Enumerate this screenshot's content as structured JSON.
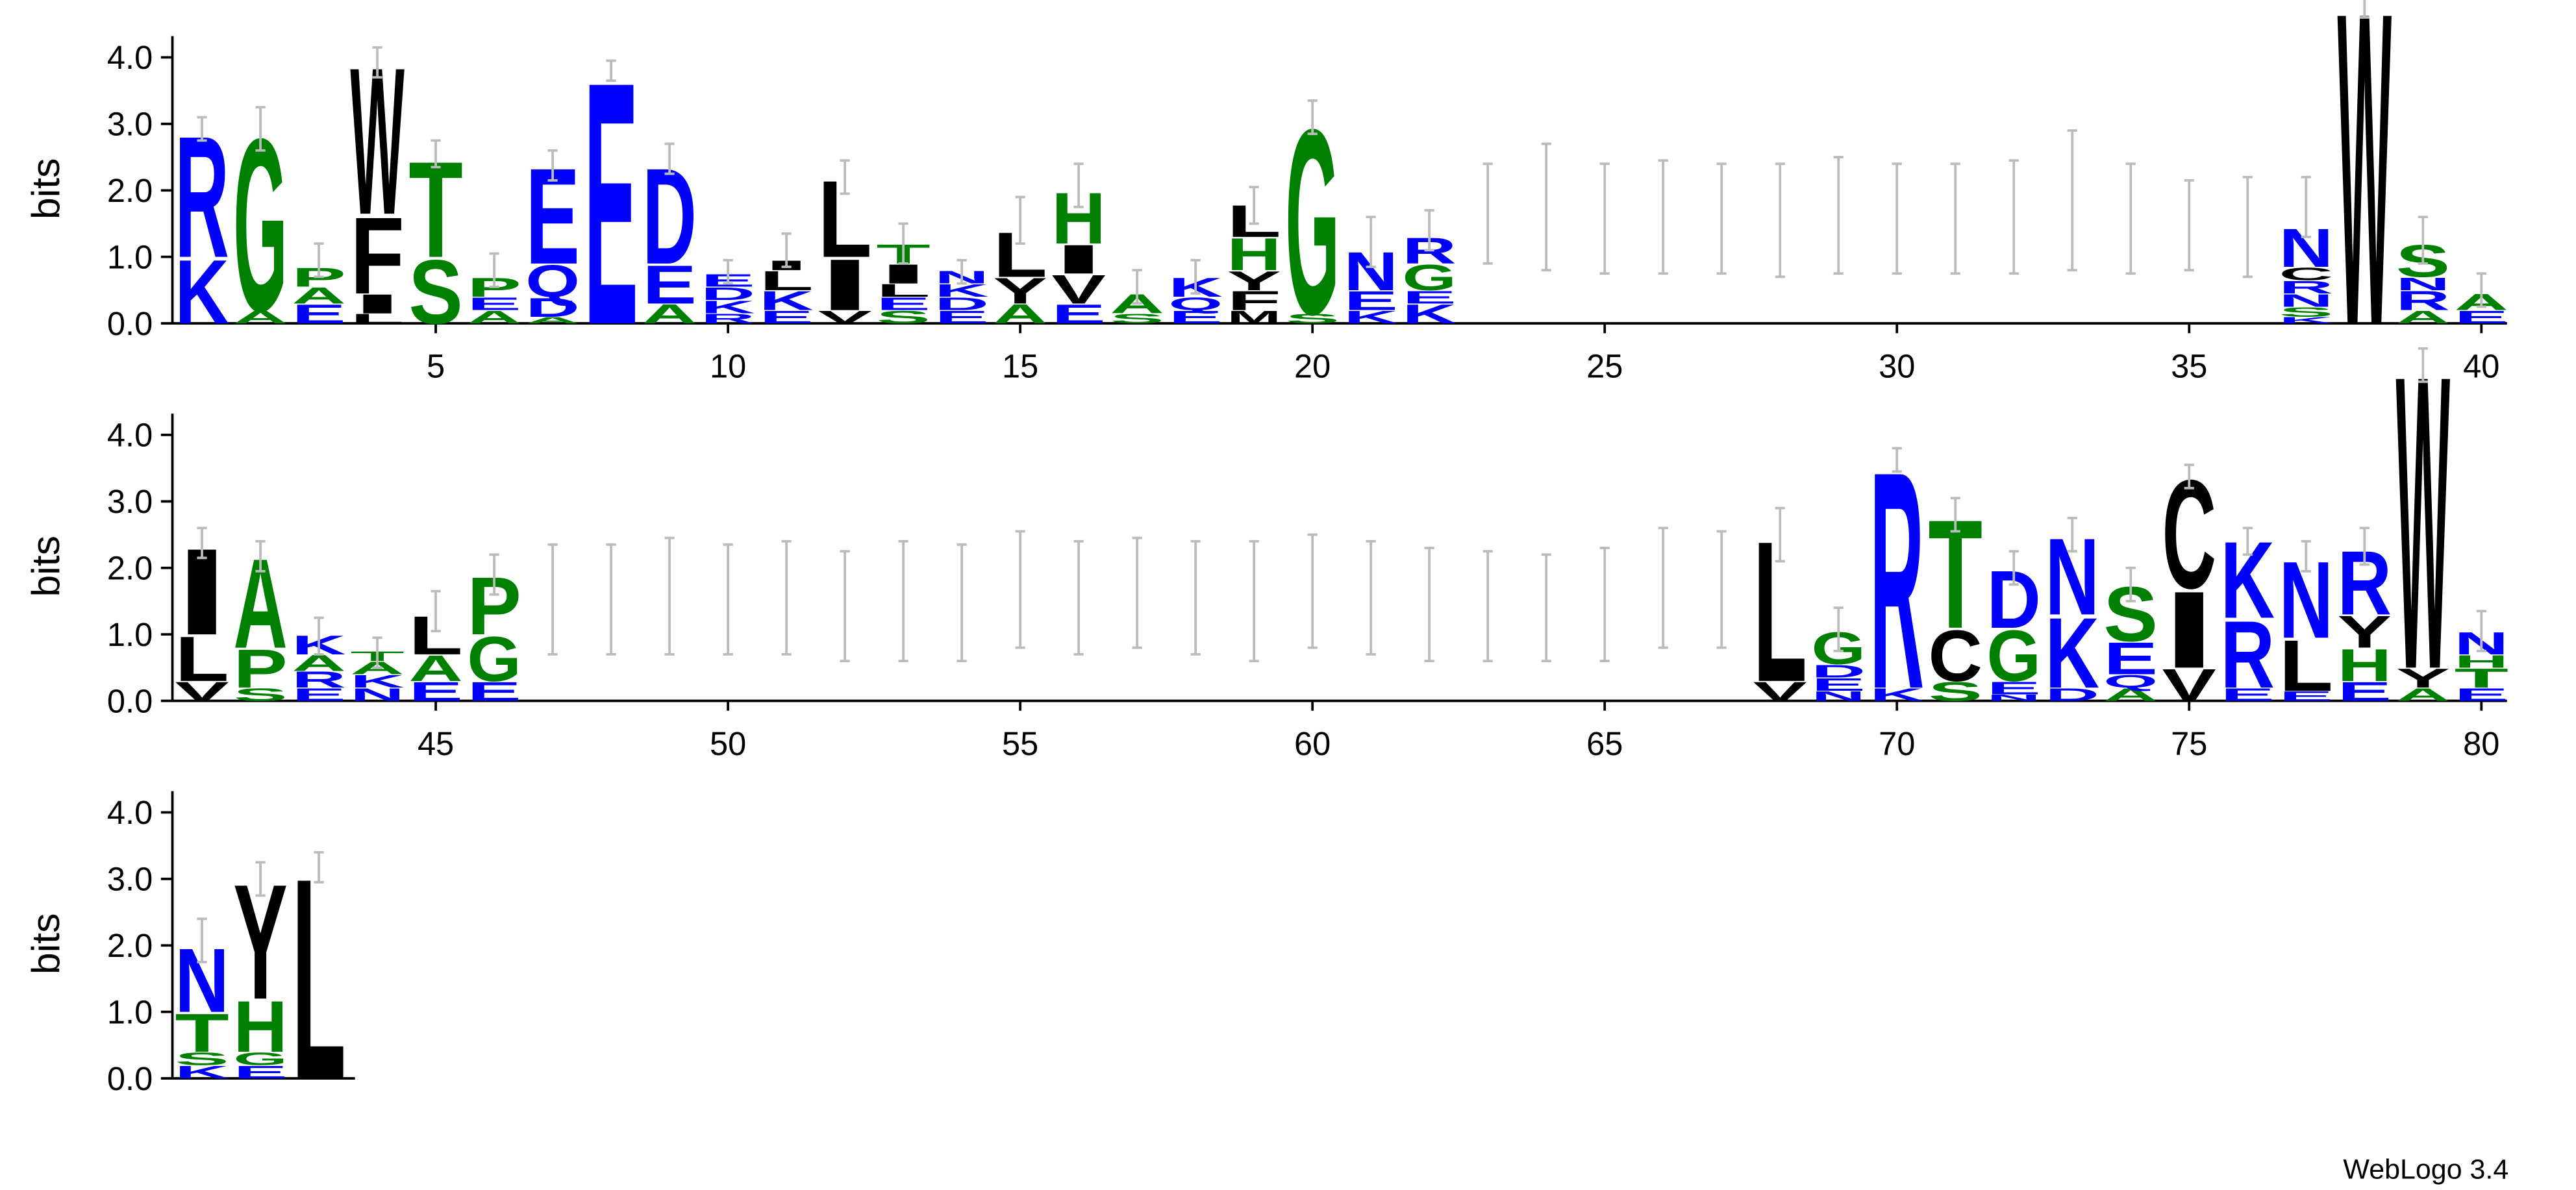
{
  "chart_data": {
    "type": "logo",
    "ylabel": "bits",
    "footer": "WebLogo 3.4",
    "ylim": [
      0,
      4.32
    ],
    "yticks": [
      {
        "value": 0,
        "label": "0.0"
      },
      {
        "value": 1,
        "label": "1.0"
      },
      {
        "value": 2,
        "label": "2.0"
      },
      {
        "value": 3,
        "label": "3.0"
      },
      {
        "value": 4,
        "label": "4.0"
      }
    ],
    "xticks": [
      5,
      10,
      15,
      20,
      25,
      30,
      35,
      40,
      45,
      50,
      55,
      60,
      65,
      70,
      75,
      80
    ],
    "colors": {
      "G": "#008000",
      "S": "#008000",
      "T": "#008000",
      "A": "#008000",
      "P": "#008000",
      "H": "#008000",
      "K": "#0000ff",
      "R": "#0000ff",
      "D": "#0000ff",
      "E": "#0000ff",
      "N": "#0000ff",
      "Q": "#0000ff",
      "C": "#000000",
      "Y": "#000000",
      "L": "#000000",
      "I": "#000000",
      "V": "#000000",
      "F": "#000000",
      "W": "#000000",
      "M": "#000000"
    },
    "positions": [
      {
        "stack": [
          [
            "K",
            1.0
          ],
          [
            "R",
            1.9
          ]
        ],
        "error": [
          2.75,
          3.1
        ]
      },
      {
        "stack": [
          [
            "A",
            0.2
          ],
          [
            "G",
            2.7
          ]
        ],
        "error": [
          2.6,
          3.25
        ]
      },
      {
        "stack": [
          [
            "E",
            0.3
          ],
          [
            "A",
            0.25
          ],
          [
            "P",
            0.3
          ]
        ],
        "error": [
          0.7,
          1.2
        ]
      },
      {
        "stack": [
          [
            "L",
            0.15
          ],
          [
            "I",
            0.3
          ],
          [
            "F",
            1.2
          ],
          [
            "W",
            2.3
          ]
        ],
        "error": [
          3.7,
          4.15
        ]
      },
      {
        "stack": [
          [
            "S",
            1.0
          ],
          [
            "T",
            1.5
          ]
        ],
        "error": [
          2.35,
          2.75
        ]
      },
      {
        "stack": [
          [
            "A",
            0.2
          ],
          [
            "E",
            0.2
          ],
          [
            "P",
            0.3
          ]
        ],
        "error": [
          0.55,
          1.05
        ]
      },
      {
        "stack": [
          [
            "A",
            0.1
          ],
          [
            "D",
            0.3
          ],
          [
            "Q",
            0.5
          ],
          [
            "E",
            1.5
          ]
        ],
        "error": [
          2.15,
          2.6
        ]
      },
      {
        "stack": [
          [
            "E",
            3.8
          ]
        ],
        "error": [
          3.65,
          3.95
        ]
      },
      {
        "stack": [
          [
            "A",
            0.3
          ],
          [
            "E",
            0.6
          ],
          [
            "D",
            1.5
          ]
        ],
        "error": [
          2.25,
          2.7
        ]
      },
      {
        "stack": [
          [
            "R",
            0.15
          ],
          [
            "K",
            0.2
          ],
          [
            "D",
            0.2
          ],
          [
            "E",
            0.2
          ]
        ],
        "error": [
          0.6,
          0.95
        ]
      },
      {
        "stack": [
          [
            "E",
            0.2
          ],
          [
            "K",
            0.3
          ],
          [
            "L",
            0.3
          ],
          [
            "I",
            0.15
          ]
        ],
        "error": [
          0.85,
          1.35
        ]
      },
      {
        "stack": [
          [
            "V",
            0.2
          ],
          [
            "I",
            0.8
          ],
          [
            "L",
            1.2
          ]
        ],
        "error": [
          1.95,
          2.45
        ]
      },
      {
        "stack": [
          [
            "S",
            0.2
          ],
          [
            "E",
            0.2
          ],
          [
            "L",
            0.2
          ],
          [
            "I",
            0.3
          ],
          [
            "T",
            0.3
          ]
        ],
        "error": [
          0.9,
          1.5
        ]
      },
      {
        "stack": [
          [
            "E",
            0.2
          ],
          [
            "D",
            0.2
          ],
          [
            "K",
            0.2
          ],
          [
            "N",
            0.2
          ]
        ],
        "error": [
          0.6,
          0.95
        ]
      },
      {
        "stack": [
          [
            "A",
            0.3
          ],
          [
            "Y",
            0.4
          ],
          [
            "L",
            0.7
          ]
        ],
        "error": [
          1.2,
          1.9
        ]
      },
      {
        "stack": [
          [
            "E",
            0.3
          ],
          [
            "V",
            0.45
          ],
          [
            "I",
            0.45
          ],
          [
            "H",
            0.8
          ]
        ],
        "error": [
          1.75,
          2.4
        ]
      },
      {
        "stack": [
          [
            "S",
            0.15
          ],
          [
            "A",
            0.3
          ]
        ],
        "error": [
          0.3,
          0.8
        ]
      },
      {
        "stack": [
          [
            "E",
            0.2
          ],
          [
            "Q",
            0.2
          ],
          [
            "K",
            0.3
          ]
        ],
        "error": [
          0.45,
          0.95
        ]
      },
      {
        "stack": [
          [
            "M",
            0.2
          ],
          [
            "F",
            0.3
          ],
          [
            "Y",
            0.3
          ],
          [
            "H",
            0.5
          ],
          [
            "L",
            0.5
          ]
        ],
        "error": [
          1.5,
          2.05
        ]
      },
      {
        "stack": [
          [
            "S",
            0.15
          ],
          [
            "G",
            2.9
          ]
        ],
        "error": [
          2.85,
          3.35
        ]
      },
      {
        "stack": [
          [
            "K",
            0.2
          ],
          [
            "E",
            0.3
          ],
          [
            "N",
            0.6
          ]
        ],
        "error": [
          0.85,
          1.6
        ]
      },
      {
        "stack": [
          [
            "K",
            0.3
          ],
          [
            "E",
            0.2
          ],
          [
            "G",
            0.4
          ],
          [
            "R",
            0.4
          ]
        ],
        "error": [
          1.1,
          1.7
        ]
      },
      {
        "stack": [],
        "error": [
          0.9,
          2.4
        ]
      },
      {
        "stack": [],
        "error": [
          0.8,
          2.7
        ]
      },
      {
        "stack": [],
        "error": [
          0.75,
          2.4
        ]
      },
      {
        "stack": [],
        "error": [
          0.75,
          2.45
        ]
      },
      {
        "stack": [],
        "error": [
          0.75,
          2.4
        ]
      },
      {
        "stack": [],
        "error": [
          0.7,
          2.4
        ]
      },
      {
        "stack": [],
        "error": [
          0.75,
          2.5
        ]
      },
      {
        "stack": [],
        "error": [
          0.75,
          2.4
        ]
      },
      {
        "stack": [],
        "error": [
          0.75,
          2.4
        ]
      },
      {
        "stack": [],
        "error": [
          0.75,
          2.45
        ]
      },
      {
        "stack": [],
        "error": [
          0.8,
          2.9
        ]
      },
      {
        "stack": [],
        "error": [
          0.75,
          2.4
        ]
      },
      {
        "stack": [],
        "error": [
          0.8,
          2.15
        ]
      },
      {
        "stack": [],
        "error": [
          0.7,
          2.2
        ]
      },
      {
        "stack": [
          [
            "K",
            0.1
          ],
          [
            "S",
            0.15
          ],
          [
            "N",
            0.2
          ],
          [
            "R",
            0.2
          ],
          [
            "C",
            0.2
          ],
          [
            "N",
            0.6
          ]
        ],
        "error": [
          1.3,
          2.2
        ]
      },
      {
        "stack": [
          [
            "W",
            4.9
          ]
        ],
        "error": [
          4.6,
          5.2
        ]
      },
      {
        "stack": [
          [
            "A",
            0.2
          ],
          [
            "R",
            0.3
          ],
          [
            "N",
            0.2
          ],
          [
            "S",
            0.5
          ]
        ],
        "error": [
          0.9,
          1.6
        ]
      },
      {
        "stack": [
          [
            "E",
            0.2
          ],
          [
            "A",
            0.25
          ]
        ],
        "error": [
          0.25,
          0.75
        ]
      },
      {
        "stack": [
          [
            "V",
            0.3
          ],
          [
            "L",
            0.7
          ],
          [
            "I",
            1.35
          ]
        ],
        "error": [
          2.15,
          2.6
        ]
      },
      {
        "stack": [
          [
            "S",
            0.2
          ],
          [
            "P",
            0.6
          ],
          [
            "A",
            1.4
          ]
        ],
        "error": [
          1.95,
          2.4
        ]
      },
      {
        "stack": [
          [
            "E",
            0.2
          ],
          [
            "R",
            0.25
          ],
          [
            "A",
            0.25
          ],
          [
            "K",
            0.3
          ]
        ],
        "error": [
          0.7,
          1.25
        ]
      },
      {
        "stack": [
          [
            "N",
            0.2
          ],
          [
            "K",
            0.2
          ],
          [
            "A",
            0.2
          ],
          [
            "T",
            0.15
          ]
        ],
        "error": [
          0.5,
          0.95
        ]
      },
      {
        "stack": [
          [
            "E",
            0.3
          ],
          [
            "A",
            0.4
          ],
          [
            "L",
            0.6
          ]
        ],
        "error": [
          1.05,
          1.65
        ]
      },
      {
        "stack": [
          [
            "E",
            0.3
          ],
          [
            "G",
            0.7
          ],
          [
            "P",
            0.9
          ]
        ],
        "error": [
          1.6,
          2.2
        ]
      },
      {
        "stack": [],
        "error": [
          0.7,
          2.35
        ]
      },
      {
        "stack": [],
        "error": [
          0.7,
          2.35
        ]
      },
      {
        "stack": [],
        "error": [
          0.7,
          2.45
        ]
      },
      {
        "stack": [],
        "error": [
          0.7,
          2.35
        ]
      },
      {
        "stack": [],
        "error": [
          0.7,
          2.4
        ]
      },
      {
        "stack": [],
        "error": [
          0.6,
          2.25
        ]
      },
      {
        "stack": [],
        "error": [
          0.6,
          2.4
        ]
      },
      {
        "stack": [],
        "error": [
          0.6,
          2.35
        ]
      },
      {
        "stack": [],
        "error": [
          0.8,
          2.55
        ]
      },
      {
        "stack": [],
        "error": [
          0.7,
          2.4
        ]
      },
      {
        "stack": [],
        "error": [
          0.8,
          2.45
        ]
      },
      {
        "stack": [],
        "error": [
          0.7,
          2.4
        ]
      },
      {
        "stack": [],
        "error": [
          0.6,
          2.4
        ]
      },
      {
        "stack": [],
        "error": [
          0.8,
          2.5
        ]
      },
      {
        "stack": [],
        "error": [
          0.7,
          2.4
        ]
      },
      {
        "stack": [],
        "error": [
          0.6,
          2.3
        ]
      },
      {
        "stack": [],
        "error": [
          0.6,
          2.25
        ]
      },
      {
        "stack": [],
        "error": [
          0.6,
          2.2
        ]
      },
      {
        "stack": [],
        "error": [
          0.6,
          2.3
        ]
      },
      {
        "stack": [],
        "error": [
          0.8,
          2.6
        ]
      },
      {
        "stack": [],
        "error": [
          0.8,
          2.55
        ]
      },
      {
        "stack": [
          [
            "V",
            0.3
          ],
          [
            "L",
            2.2
          ]
        ],
        "error": [
          2.1,
          2.9
        ]
      },
      {
        "stack": [
          [
            "N",
            0.15
          ],
          [
            "E",
            0.2
          ],
          [
            "D",
            0.2
          ],
          [
            "G",
            0.5
          ]
        ],
        "error": [
          0.75,
          1.4
        ]
      },
      {
        "stack": [
          [
            "K",
            0.2
          ],
          [
            "R",
            3.4
          ]
        ],
        "error": [
          3.45,
          3.8
        ]
      },
      {
        "stack": [
          [
            "S",
            0.3
          ],
          [
            "C",
            0.8
          ],
          [
            "T",
            1.7
          ]
        ],
        "error": [
          2.55,
          3.05
        ]
      },
      {
        "stack": [
          [
            "N",
            0.1
          ],
          [
            "E",
            0.2
          ],
          [
            "G",
            0.8
          ],
          [
            "D",
            0.9
          ]
        ],
        "error": [
          1.75,
          2.25
        ]
      },
      {
        "stack": [
          [
            "D",
            0.2
          ],
          [
            "K",
            1.1
          ],
          [
            "N",
            1.2
          ]
        ],
        "error": [
          2.25,
          2.75
        ]
      },
      {
        "stack": [
          [
            "A",
            0.2
          ],
          [
            "Q",
            0.2
          ],
          [
            "E",
            0.5
          ],
          [
            "S",
            0.85
          ]
        ],
        "error": [
          1.5,
          2.0
        ]
      },
      {
        "stack": [
          [
            "V",
            0.5
          ],
          [
            "I",
            1.2
          ],
          [
            "C",
            1.7
          ]
        ],
        "error": [
          3.2,
          3.55
        ]
      },
      {
        "stack": [
          [
            "E",
            0.2
          ],
          [
            "R",
            1.05
          ],
          [
            "K",
            1.2
          ]
        ],
        "error": [
          2.2,
          2.6
        ]
      },
      {
        "stack": [
          [
            "E",
            0.15
          ],
          [
            "L",
            0.8
          ],
          [
            "N",
            1.2
          ]
        ],
        "error": [
          1.95,
          2.4
        ]
      },
      {
        "stack": [
          [
            "E",
            0.3
          ],
          [
            "H",
            0.5
          ],
          [
            "Y",
            0.5
          ],
          [
            "R",
            1.0
          ]
        ],
        "error": [
          2.05,
          2.6
        ]
      },
      {
        "stack": [
          [
            "A",
            0.2
          ],
          [
            "Y",
            0.3
          ],
          [
            "W",
            4.6
          ]
        ],
        "error": [
          4.8,
          5.3
        ]
      },
      {
        "stack": [
          [
            "E",
            0.2
          ],
          [
            "T",
            0.3
          ],
          [
            "H",
            0.2
          ],
          [
            "N",
            0.35
          ]
        ],
        "error": [
          0.75,
          1.35
        ]
      },
      {
        "stack": [
          [
            "K",
            0.2
          ],
          [
            "S",
            0.2
          ],
          [
            "T",
            0.6
          ],
          [
            "N",
            1.0
          ]
        ],
        "error": [
          1.75,
          2.4
        ]
      },
      {
        "stack": [
          [
            "E",
            0.2
          ],
          [
            "G",
            0.2
          ],
          [
            "H",
            0.8
          ],
          [
            "Y",
            1.8
          ]
        ],
        "error": [
          2.75,
          3.25
        ]
      },
      {
        "stack": [
          [
            "L",
            3.15
          ]
        ],
        "error": [
          2.95,
          3.4
        ]
      }
    ]
  }
}
